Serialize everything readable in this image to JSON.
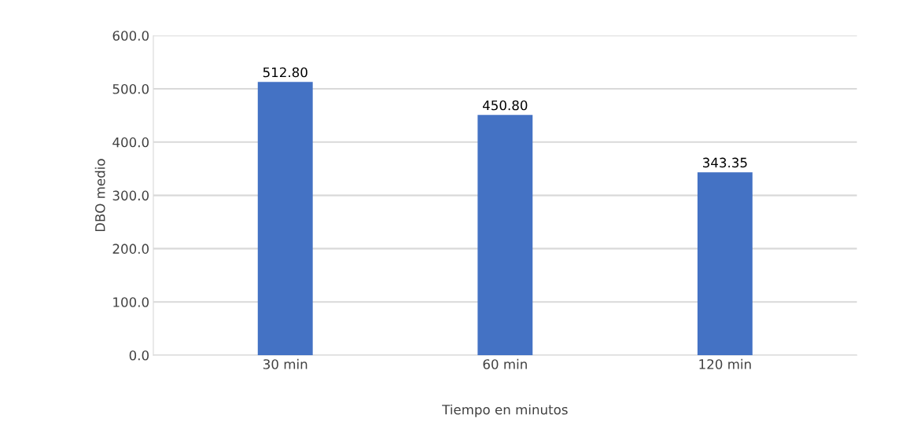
{
  "chart_data": {
    "type": "bar",
    "xlabel": "Tiempo en minutos",
    "ylabel": "DBO medio",
    "categories": [
      "30 min",
      "60 min",
      "120 min"
    ],
    "values": [
      512.8,
      450.8,
      343.35
    ],
    "value_labels": [
      "512.80",
      "450.80",
      "343.35"
    ],
    "color": "#4472c4",
    "ylim": [
      0,
      600
    ],
    "yticks": [
      {
        "value": 0,
        "label": "0.0"
      },
      {
        "value": 100,
        "label": "100.0"
      },
      {
        "value": 200,
        "label": "200.0"
      },
      {
        "value": 300,
        "label": "300.0"
      },
      {
        "value": 400,
        "label": "400.0"
      },
      {
        "value": 500,
        "label": "500.0"
      },
      {
        "value": 600,
        "label": "600.0"
      }
    ],
    "grid": "y"
  }
}
